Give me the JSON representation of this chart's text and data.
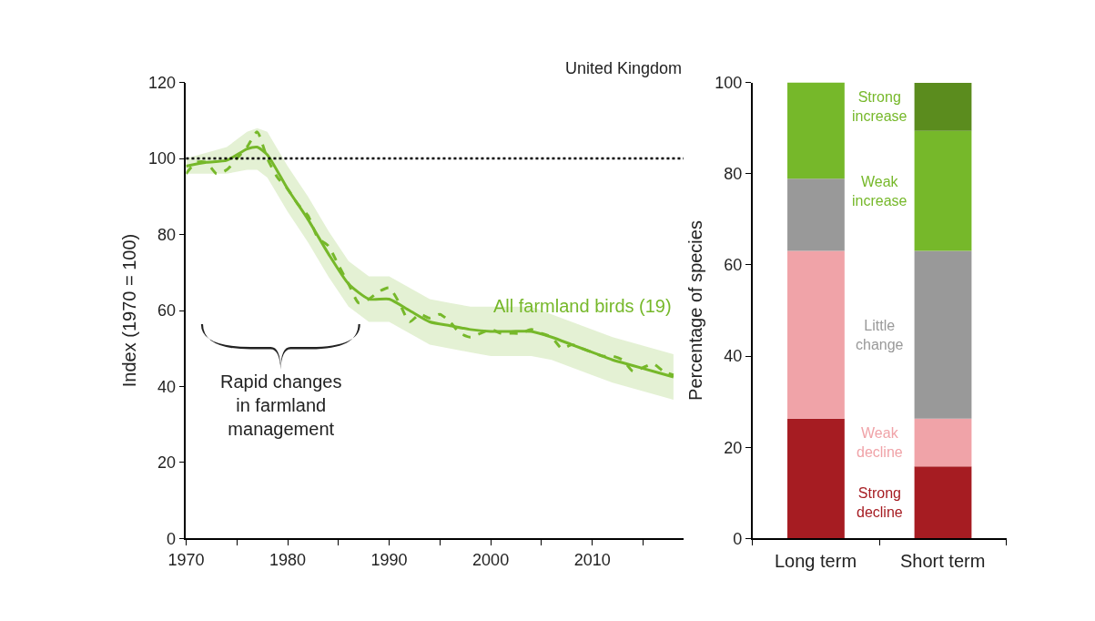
{
  "chart_data": [
    {
      "type": "line",
      "ylabel": "Index (1970 = 100)",
      "xlim": [
        1970,
        2019
      ],
      "xticks": [
        1970,
        {
          "value": 1975,
          "label": null
        },
        1980,
        {
          "value": 1985,
          "label": null
        },
        1990,
        {
          "value": 1995,
          "label": null
        },
        2000,
        {
          "value": 2005,
          "label": null
        },
        2010,
        {
          "value": 2015,
          "label": null
        }
      ],
      "ylim": [
        0,
        120
      ],
      "yticks": [
        0,
        20,
        40,
        60,
        80,
        100,
        120
      ],
      "grid": false,
      "legend": false,
      "marker": "none",
      "annotations": [
        "United Kingdom",
        "Rapid changes\nin farmland\nmanagement"
      ],
      "ref_lines": [
        {
          "axis": "y",
          "value": 100,
          "label": null,
          "color": "#000000",
          "line_style": "dotted"
        }
      ],
      "series": [
        {
          "name": "All farmland birds (19)",
          "color": "#76b82a",
          "line_style": "solid",
          "x": [
            1970,
            1972,
            1974,
            1976,
            1977,
            1978,
            1980,
            1982,
            1984,
            1986,
            1988,
            1990,
            1992,
            1994,
            1996,
            1998,
            2000,
            2002,
            2004,
            2006,
            2008,
            2010,
            2012,
            2014,
            2016,
            2018
          ],
          "values": [
            98,
            99,
            99.5,
            102.5,
            103,
            101,
            92,
            84,
            75,
            67,
            63,
            63,
            60,
            57,
            56,
            55,
            54.5,
            54.5,
            54.5,
            53,
            51,
            49,
            47,
            45.5,
            44,
            42.5
          ],
          "lower": [
            96,
            96,
            96,
            97,
            97,
            95,
            86,
            78,
            69,
            61,
            57,
            57,
            54,
            51,
            50,
            49,
            48,
            48,
            48,
            47,
            45,
            43,
            41,
            39.5,
            38,
            36.5
          ],
          "upper": [
            100,
            101.5,
            103,
            107,
            108,
            107,
            98,
            90,
            81,
            73,
            69,
            69,
            66,
            63,
            62,
            61,
            61,
            61,
            61,
            59,
            57,
            55,
            53,
            51.5,
            50,
            48.5
          ]
        },
        {
          "color": "#76b82a",
          "line_style": "dashed",
          "x": [
            1970,
            1971,
            1972,
            1973,
            1974,
            1975,
            1976,
            1977,
            1978,
            1979,
            1980,
            1981,
            1982,
            1983,
            1984,
            1985,
            1986,
            1987,
            1988,
            1989,
            1990,
            1991,
            1992,
            1993,
            1994,
            1995,
            1996,
            1997,
            1998,
            1999,
            2000,
            2001,
            2002,
            2003,
            2004,
            2005,
            2006,
            2007,
            2008,
            2009,
            2010,
            2011,
            2012,
            2013,
            2014,
            2015,
            2016,
            2017,
            2018
          ],
          "values": [
            96,
            99,
            99,
            96,
            97,
            100,
            103,
            107,
            100,
            95,
            92,
            88,
            85,
            79,
            77,
            72,
            67,
            62,
            63,
            65,
            66,
            62,
            57,
            59,
            58,
            59,
            57,
            54,
            53,
            54,
            55,
            54,
            54,
            54,
            55,
            54,
            53,
            50,
            51,
            50,
            49,
            48,
            48,
            47,
            44,
            45,
            46,
            44,
            43
          ]
        }
      ]
    },
    {
      "type": "bar",
      "stacked": true,
      "ylabel": "Percentage of species",
      "categories": [
        "Long term",
        "Short term"
      ],
      "ylim": [
        0,
        100
      ],
      "yticks": [
        0,
        20,
        40,
        60,
        80,
        100
      ],
      "grid": false,
      "legend": false,
      "series": [
        {
          "name": "Strong decline",
          "color": "#a61c22",
          "values": [
            26.3,
            15.8
          ]
        },
        {
          "name": "Weak decline",
          "color": "#f0a3a8",
          "values": [
            36.8,
            10.5
          ]
        },
        {
          "name": "Little change",
          "color": "#999999",
          "values": [
            15.8,
            36.8
          ]
        },
        {
          "name": "Weak increase",
          "color": "#76b82a",
          "values": [
            0,
            26.3
          ]
        },
        {
          "name": "Strong increase",
          "colors": [
            "#76b82a",
            "#5b8c1e"
          ],
          "values": [
            21.1,
            10.5
          ]
        }
      ]
    }
  ]
}
